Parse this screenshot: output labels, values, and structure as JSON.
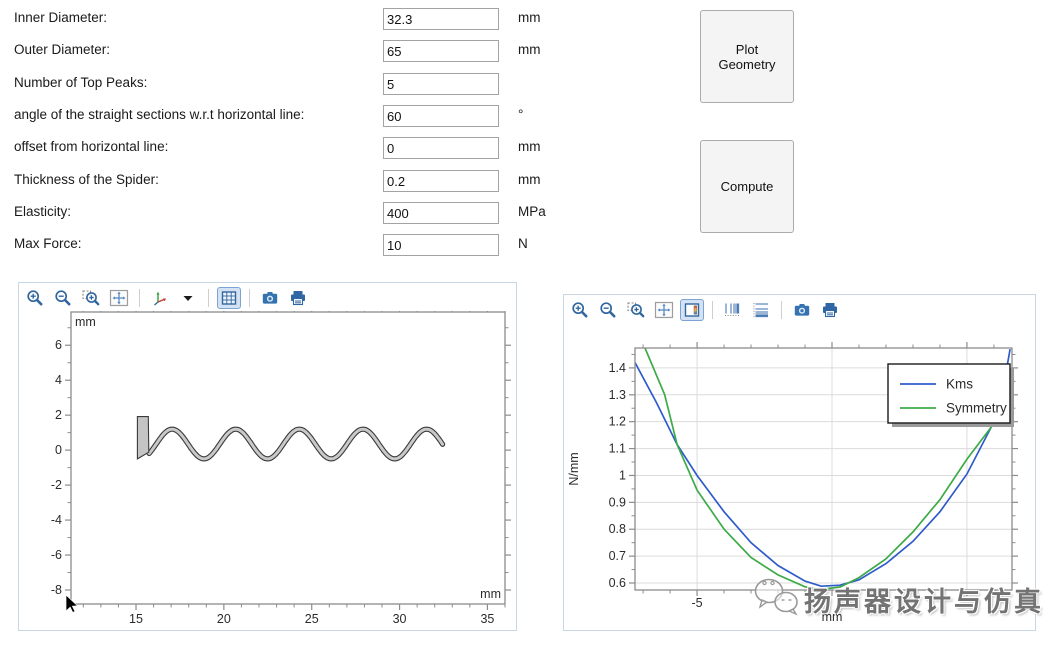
{
  "form": {
    "rows": [
      {
        "label": "Inner Diameter:",
        "value": "32.3",
        "unit": "mm"
      },
      {
        "label": "Outer Diameter:",
        "value": "65",
        "unit": "mm"
      },
      {
        "label": "Number of Top Peaks:",
        "value": "5",
        "unit": ""
      },
      {
        "label": "angle of the straight sections w.r.t horizontal line:",
        "value": "60",
        "unit": "°"
      },
      {
        "label": "offset from horizontal line:",
        "value": "0",
        "unit": "mm"
      },
      {
        "label": "Thickness of the Spider:",
        "value": "0.2",
        "unit": "mm"
      },
      {
        "label": "Elasticity:",
        "value": "400",
        "unit": "MPa"
      },
      {
        "label": "Max Force:",
        "value": "10",
        "unit": "N"
      }
    ]
  },
  "buttons": {
    "plot_geometry": "Plot Geometry",
    "compute": "Compute"
  },
  "left_panel": {
    "toolbar": [
      {
        "icon": "zoom-in"
      },
      {
        "icon": "zoom-out"
      },
      {
        "icon": "zoom-box"
      },
      {
        "icon": "zoom-extents"
      },
      {
        "sep": true
      },
      {
        "icon": "axis-orientation"
      },
      {
        "icon": "caret-down"
      },
      {
        "sep": true
      },
      {
        "icon": "grid",
        "active": true
      },
      {
        "sep": true
      },
      {
        "icon": "camera"
      },
      {
        "icon": "print"
      }
    ]
  },
  "right_panel": {
    "toolbar": [
      {
        "icon": "zoom-in"
      },
      {
        "icon": "zoom-out"
      },
      {
        "icon": "zoom-box"
      },
      {
        "icon": "zoom-extents"
      },
      {
        "icon": "legend",
        "active": true
      },
      {
        "sep": true
      },
      {
        "icon": "x-log-scale"
      },
      {
        "icon": "y-log-scale"
      },
      {
        "sep": true
      },
      {
        "icon": "camera"
      },
      {
        "icon": "print"
      }
    ]
  },
  "watermark": {
    "text": "扬声器设计与仿真"
  },
  "chart_data": [
    {
      "id": "geometry",
      "type": "line",
      "title": "Spider geometry cross-section",
      "unit_label_top": "mm",
      "unit_label_bottom": "mm",
      "xlim": [
        11.3,
        36.0
      ],
      "ylim": [
        -8.8,
        7.9
      ],
      "x_ticks": [
        15,
        20,
        25,
        30,
        35
      ],
      "y_ticks": [
        6,
        4,
        2,
        0,
        -2,
        -4,
        -6,
        -8
      ],
      "grid": false,
      "geometry": {
        "clamp_rect": [
          [
            15.08,
            1.92
          ],
          [
            15.7,
            1.92
          ],
          [
            15.73,
            -0.12
          ],
          [
            15.08,
            -0.5
          ]
        ],
        "wave": {
          "x_start": 15.75,
          "x_end": 32.45,
          "offset": 0.35,
          "amplitude": 0.85,
          "period": 3.62,
          "phase_x": 16.15,
          "thickness_mm": 0.2
        }
      }
    },
    {
      "id": "stiffness",
      "type": "line",
      "xlabel": "mm",
      "ylabel": "N/mm",
      "xlim": [
        -7.3,
        6.67
      ],
      "ylim": [
        0.574,
        1.474
      ],
      "x_ticks": [
        -5,
        0,
        5
      ],
      "x_tick_labels": [
        "-5",
        "",
        ""
      ],
      "y_ticks": [
        1.4,
        1.3,
        1.2,
        1.1,
        1,
        0.9,
        0.8,
        0.7,
        0.6
      ],
      "y_tick_labels": [
        "1.4",
        "1.3",
        "1.2",
        "1.1",
        "1",
        "0.9",
        "0.8",
        "0.7",
        "0.6"
      ],
      "grid": true,
      "legend": {
        "position": "top-right"
      },
      "series": [
        {
          "name": "Kms",
          "color": "#2f5bcb",
          "points": [
            [
              -7.3,
              1.42
            ],
            [
              -6.5,
              1.27
            ],
            [
              -5.74,
              1.115
            ],
            [
              -5,
              1.0
            ],
            [
              -4,
              0.865
            ],
            [
              -3,
              0.75
            ],
            [
              -2,
              0.665
            ],
            [
              -1,
              0.607
            ],
            [
              -0.4,
              0.588
            ],
            [
              0.3,
              0.592
            ],
            [
              1,
              0.612
            ],
            [
              2,
              0.672
            ],
            [
              3,
              0.755
            ],
            [
              4,
              0.865
            ],
            [
              5,
              1.005
            ],
            [
              5.9,
              1.18
            ],
            [
              6.3,
              1.3
            ],
            [
              6.6,
              1.47
            ]
          ]
        },
        {
          "name": "Symmetry",
          "color": "#3cab47",
          "points": [
            [
              -6.93,
              1.474
            ],
            [
              -6.2,
              1.3
            ],
            [
              -5.74,
              1.115
            ],
            [
              -5,
              0.945
            ],
            [
              -4,
              0.8
            ],
            [
              -3,
              0.695
            ],
            [
              -2,
              0.63
            ],
            [
              -1,
              0.586
            ],
            [
              -0.45,
              0.576
            ],
            [
              0.3,
              0.585
            ],
            [
              1,
              0.62
            ],
            [
              2,
              0.69
            ],
            [
              3,
              0.79
            ],
            [
              4,
              0.91
            ],
            [
              5,
              1.06
            ],
            [
              5.9,
              1.18
            ],
            [
              6.6,
              1.4
            ]
          ]
        }
      ]
    }
  ]
}
